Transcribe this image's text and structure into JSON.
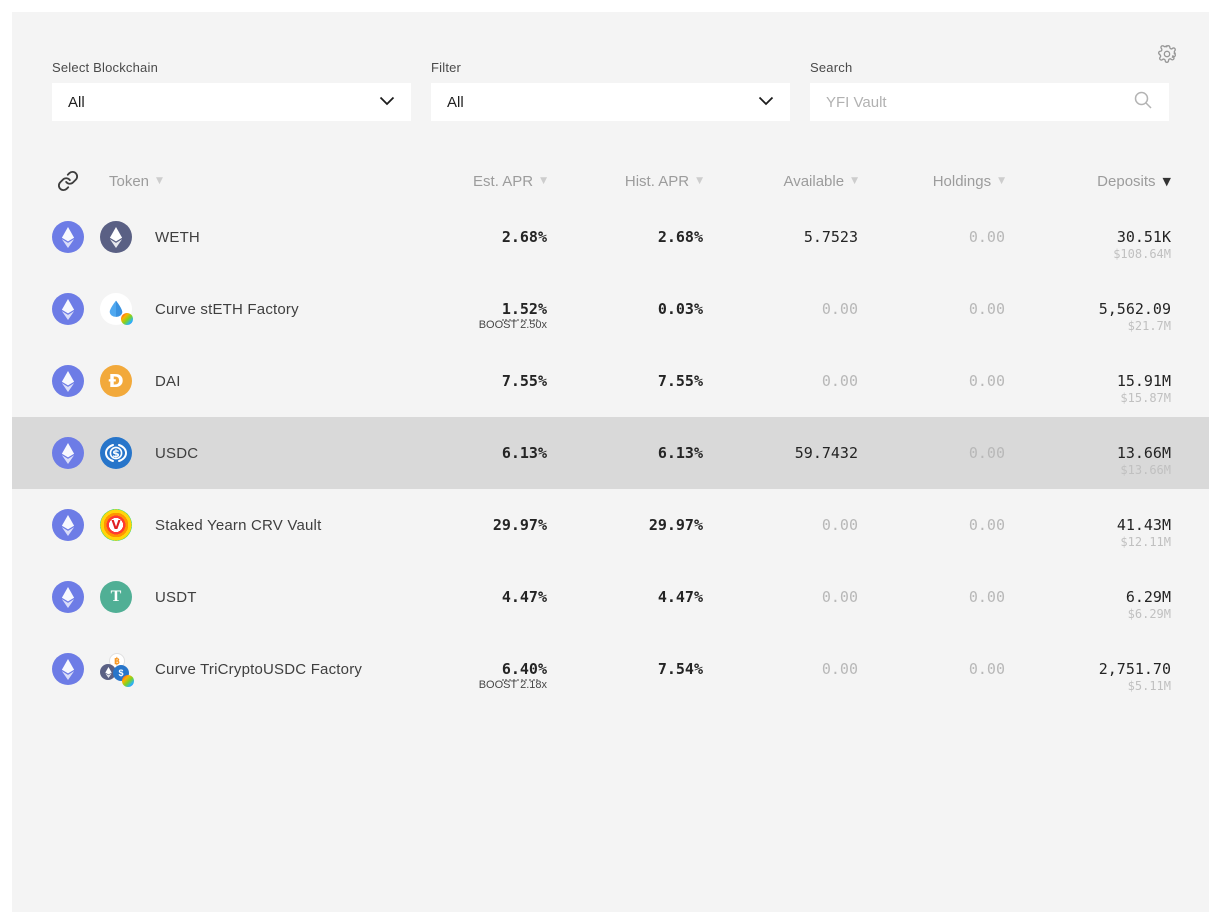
{
  "toolbar": {
    "blockchain": {
      "label": "Select Blockchain",
      "value": "All"
    },
    "filter": {
      "label": "Filter",
      "value": "All"
    },
    "search": {
      "label": "Search",
      "placeholder": "YFI Vault"
    }
  },
  "table": {
    "columns": [
      {
        "label": "Token",
        "sort": "inactive"
      },
      {
        "label": "Est. APR",
        "sort": "inactive"
      },
      {
        "label": "Hist. APR",
        "sort": "inactive"
      },
      {
        "label": "Available",
        "sort": "inactive"
      },
      {
        "label": "Holdings",
        "sort": "inactive"
      },
      {
        "label": "Deposits",
        "sort": "active-desc"
      }
    ],
    "rows": [
      {
        "chain_icon": "ethereum-chain",
        "token_icon": "weth",
        "name": "WETH",
        "est_apr": "2.68%",
        "boost": null,
        "hist_apr": "2.68%",
        "available": "5.7523",
        "available_muted": false,
        "holdings": "0.00",
        "deposits": "30.51K",
        "deposits_usd": "$108.64M",
        "highlighted": false
      },
      {
        "chain_icon": "ethereum-chain",
        "token_icon": "steth-curve",
        "name": "Curve stETH Factory",
        "est_apr": "1.52%",
        "boost": "BOOST 2.50x",
        "hist_apr": "0.03%",
        "available": "0.00",
        "available_muted": true,
        "holdings": "0.00",
        "deposits": "5,562.09",
        "deposits_usd": "$21.7M",
        "highlighted": false
      },
      {
        "chain_icon": "ethereum-chain",
        "token_icon": "dai",
        "name": "DAI",
        "est_apr": "7.55%",
        "boost": null,
        "hist_apr": "7.55%",
        "available": "0.00",
        "available_muted": true,
        "holdings": "0.00",
        "deposits": "15.91M",
        "deposits_usd": "$15.87M",
        "highlighted": false
      },
      {
        "chain_icon": "ethereum-chain",
        "token_icon": "usdc",
        "name": "USDC",
        "est_apr": "6.13%",
        "boost": null,
        "hist_apr": "6.13%",
        "available": "59.7432",
        "available_muted": false,
        "holdings": "0.00",
        "deposits": "13.66M",
        "deposits_usd": "$13.66M",
        "highlighted": true
      },
      {
        "chain_icon": "ethereum-chain",
        "token_icon": "ycrv",
        "name": "Staked Yearn CRV Vault",
        "est_apr": "29.97%",
        "boost": null,
        "hist_apr": "29.97%",
        "available": "0.00",
        "available_muted": true,
        "holdings": "0.00",
        "deposits": "41.43M",
        "deposits_usd": "$12.11M",
        "highlighted": false
      },
      {
        "chain_icon": "ethereum-chain",
        "token_icon": "usdt",
        "name": "USDT",
        "est_apr": "4.47%",
        "boost": null,
        "hist_apr": "4.47%",
        "available": "0.00",
        "available_muted": true,
        "holdings": "0.00",
        "deposits": "6.29M",
        "deposits_usd": "$6.29M",
        "highlighted": false
      },
      {
        "chain_icon": "ethereum-chain",
        "token_icon": "tricrypto-curve",
        "name": "Curve TriCryptoUSDC Factory",
        "est_apr": "6.40%",
        "boost": "BOOST 2.18x",
        "hist_apr": "7.54%",
        "available": "0.00",
        "available_muted": true,
        "holdings": "0.00",
        "deposits": "2,751.70",
        "deposits_usd": "$5.11M",
        "highlighted": false
      }
    ]
  },
  "icon_colors": {
    "ethereum_chain_bg": "#6D7CE6",
    "weth_bg": "#5A6084",
    "steth_blue": "#4FA8F0",
    "steth_blue_dark": "#2A7FD4",
    "dai_bg": "#F2A93B",
    "usdc_bg": "#2775CA",
    "usdt_bg": "#50AF95",
    "wbtc_orange": "#F7931A",
    "card_bg": "#f4f4f4",
    "row_highlight": "#d9d9d9"
  }
}
